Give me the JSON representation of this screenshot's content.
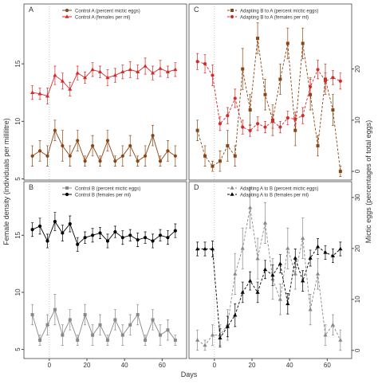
{
  "xlabel": "Days",
  "ylabel": "Female density (individuals per millilitre)",
  "y2label": "Mictic eggs (percentages of total eggs)",
  "chart_data": [
    {
      "type": "line",
      "panel": "A",
      "xlim": [
        -13.5,
        73
      ],
      "ylim": [
        4.9,
        20.2
      ],
      "y2lim": [
        -1.7,
        32.7
      ],
      "yticks": [
        5,
        10,
        15
      ],
      "x": [
        -9,
        -5,
        -1,
        3,
        7,
        11,
        15,
        19,
        23,
        27,
        31,
        35,
        39,
        43,
        47,
        51,
        55,
        59,
        63,
        67
      ],
      "series": [
        {
          "name": "Control A (percent mictic eggs)",
          "color": "#8b4513",
          "axis": "y2",
          "marker": "circle",
          "dash": false,
          "values": [
            3,
            4,
            3,
            8,
            5,
            3,
            6,
            2,
            5,
            2,
            6,
            2,
            3,
            5,
            2,
            3,
            7,
            2,
            4,
            3
          ],
          "errors": [
            2,
            2,
            2,
            2,
            3,
            2,
            2,
            1,
            2,
            1,
            2,
            1,
            2,
            2,
            1,
            2,
            2,
            1,
            2,
            2
          ]
        },
        {
          "name": "Control A (females per ml)",
          "color": "#d42a2a",
          "axis": "y",
          "marker": "triangle",
          "dash": false,
          "values": [
            12.5,
            12.4,
            12.2,
            14,
            13.5,
            12.8,
            14.2,
            13.8,
            14.5,
            14.3,
            13.8,
            14,
            14.3,
            14.5,
            14.3,
            14.8,
            14.2,
            14.6,
            14.3,
            14.5
          ],
          "errors": [
            0.6,
            0.5,
            0.7,
            0.8,
            0.7,
            0.6,
            0.6,
            0.5,
            0.6,
            0.5,
            0.7,
            0.6,
            0.6,
            0.7,
            0.6,
            0.7,
            0.6,
            0.7,
            0.5,
            0.6
          ]
        }
      ]
    },
    {
      "type": "line",
      "panel": "C",
      "xlim": [
        -13.5,
        73
      ],
      "ylim": [
        4.9,
        20.2
      ],
      "y2lim": [
        -1.7,
        32.7
      ],
      "y2ticks": [
        0,
        10,
        20
      ],
      "x": [
        -9,
        -5,
        -1,
        3,
        7,
        11,
        15,
        19,
        23,
        27,
        31,
        35,
        39,
        43,
        47,
        51,
        55,
        59,
        63,
        67
      ],
      "series": [
        {
          "name": "Adapting B to A (percent mictic eggs)",
          "color": "#8b4513",
          "axis": "y2",
          "marker": "square",
          "dash": true,
          "values": [
            8,
            3,
            1,
            2,
            5,
            3,
            20,
            12,
            26,
            15,
            10,
            18,
            25,
            8,
            25,
            15,
            5,
            18,
            12,
            0
          ],
          "errors": [
            2,
            2,
            1,
            2,
            3,
            2,
            4,
            3,
            3,
            3,
            3,
            3,
            3,
            3,
            3,
            3,
            2,
            3,
            3,
            1
          ]
        },
        {
          "name": "Adapting B to A (females per ml)",
          "color": "#d42a2a",
          "axis": "y",
          "marker": "circle",
          "dash": true,
          "values": [
            15.2,
            15,
            14,
            9.8,
            10.5,
            12,
            9.5,
            9.2,
            9.8,
            9.5,
            10,
            9.5,
            10.3,
            10.2,
            10.5,
            13,
            14.5,
            13.5,
            13.8,
            13.5
          ],
          "errors": [
            0.7,
            0.8,
            0.9,
            0.6,
            0.7,
            0.8,
            0.6,
            0.5,
            0.6,
            0.5,
            0.6,
            0.5,
            0.6,
            0.6,
            0.7,
            0.8,
            0.8,
            0.7,
            0.6,
            0.7
          ]
        }
      ]
    },
    {
      "type": "line",
      "panel": "B",
      "xlim": [
        -13.5,
        73
      ],
      "ylim": [
        4.2,
        19.7
      ],
      "y2lim": [
        -1.6,
        33.1
      ],
      "yticks": [
        5,
        10,
        15
      ],
      "xticks": [
        0,
        20,
        40,
        60
      ],
      "x": [
        -9,
        -5,
        -1,
        3,
        7,
        11,
        15,
        19,
        23,
        27,
        31,
        35,
        39,
        43,
        47,
        51,
        55,
        59,
        63,
        67
      ],
      "series": [
        {
          "name": "Control B (percent mictic eggs)",
          "color": "#888888",
          "axis": "y2",
          "marker": "square",
          "dash": false,
          "values": [
            7,
            2,
            5,
            8,
            3,
            6,
            2,
            7,
            3,
            5,
            2,
            6,
            3,
            5,
            7,
            2,
            6,
            3,
            4,
            2
          ],
          "errors": [
            2,
            1,
            2,
            3,
            2,
            2,
            1,
            2,
            2,
            2,
            1,
            2,
            2,
            2,
            2,
            1,
            2,
            2,
            2,
            1
          ]
        },
        {
          "name": "Control B (females per ml)",
          "color": "#000000",
          "axis": "y",
          "marker": "circle",
          "dash": false,
          "values": [
            15.5,
            15.8,
            14.5,
            16.2,
            15.2,
            16,
            14.2,
            14.8,
            15,
            15.2,
            14.5,
            15.3,
            14.8,
            15,
            14.6,
            14.8,
            14.5,
            15,
            14.8,
            15.4
          ],
          "errors": [
            0.6,
            0.7,
            0.6,
            0.8,
            0.7,
            0.7,
            0.6,
            0.5,
            0.6,
            0.5,
            0.6,
            0.5,
            0.6,
            0.5,
            0.6,
            0.5,
            0.6,
            0.5,
            0.6,
            0.6
          ]
        }
      ]
    },
    {
      "type": "line",
      "panel": "D",
      "xlim": [
        -13.5,
        73
      ],
      "ylim": [
        4.2,
        19.7
      ],
      "y2lim": [
        -1.6,
        33.1
      ],
      "y2ticks": [
        0,
        10,
        20,
        30
      ],
      "xticks": [
        0,
        20,
        40,
        60
      ],
      "x": [
        -9,
        -5,
        -1,
        3,
        7,
        11,
        15,
        19,
        23,
        27,
        31,
        35,
        39,
        43,
        47,
        51,
        55,
        59,
        63,
        67
      ],
      "series": [
        {
          "name": "Adapting A to B (percent mictic eggs)",
          "color": "#888888",
          "axis": "y2",
          "marker": "triangle",
          "dash": true,
          "values": [
            2,
            1,
            3,
            3,
            5,
            15,
            20,
            28,
            18,
            25,
            14,
            10,
            20,
            15,
            22,
            8,
            15,
            3,
            5,
            2
          ],
          "errors": [
            2,
            1,
            2,
            2,
            3,
            4,
            4,
            4,
            4,
            4,
            4,
            3,
            4,
            3,
            4,
            3,
            3,
            2,
            2,
            2
          ]
        },
        {
          "name": "Adapting A to B (females per ml)",
          "color": "#000000",
          "axis": "y",
          "marker": "triangle",
          "dash": true,
          "values": [
            13.8,
            13.8,
            13.8,
            6,
            7,
            8,
            10,
            11,
            10,
            12,
            11.5,
            12.5,
            9,
            13,
            11,
            13,
            14,
            13.5,
            13.2,
            13.8
          ],
          "errors": [
            0.6,
            0.6,
            0.7,
            0.8,
            0.9,
            1,
            0.9,
            0.8,
            0.9,
            0.8,
            0.9,
            0.8,
            0.9,
            0.8,
            0.9,
            0.7,
            0.7,
            0.6,
            0.6,
            0.6
          ]
        }
      ]
    }
  ]
}
